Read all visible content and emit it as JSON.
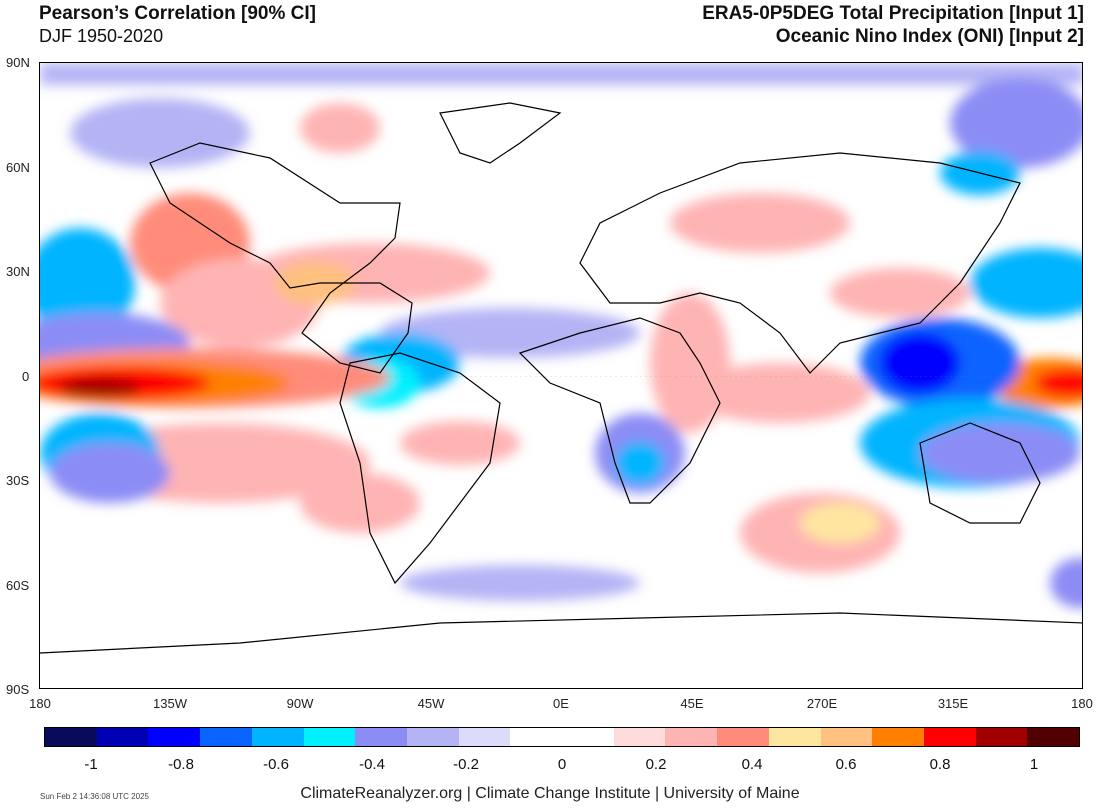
{
  "header": {
    "title_left": "Pearson’s Correlation [90% CI]",
    "subtitle_left": "DJF 1950-2020",
    "title_right_1": "ERA5-0P5DEG Total Precipitation [Input 1]",
    "title_right_2": "Oceanic Nino Index (ONI) [Input 2]"
  },
  "map": {
    "type": "correlation-map",
    "projection": "equirectangular",
    "lat_labels": [
      "90N",
      "60N",
      "30N",
      "0",
      "30S",
      "60S",
      "90S"
    ],
    "lon_labels": [
      "180",
      "135W",
      "90W",
      "45W",
      "0E",
      "45E",
      "270E",
      "315E",
      "180"
    ]
  },
  "colorbar": {
    "colors": [
      "#0a0a5a",
      "#0000b4",
      "#0000ff",
      "#0a64ff",
      "#00b4ff",
      "#00f0ff",
      "#8c8cf5",
      "#b4b4f5",
      "#dcdcfa",
      "#ffffff",
      "#ffffff",
      "#ffdcdc",
      "#ffb4b4",
      "#ff8c7a",
      "#ffe6a0",
      "#ffc080",
      "#ff8000",
      "#ff0000",
      "#a00000",
      "#500000"
    ],
    "labels": [
      "-1",
      "-0.8",
      "-0.6",
      "-0.4",
      "-0.2",
      "0",
      "0.2",
      "0.4",
      "0.6",
      "0.8",
      "1"
    ]
  },
  "footer": {
    "timestamp": "Sun Feb  2 14:36:08 UTC 2025",
    "credit": "ClimateReanalyzer.org | Climate Change Institute | University of Maine"
  }
}
